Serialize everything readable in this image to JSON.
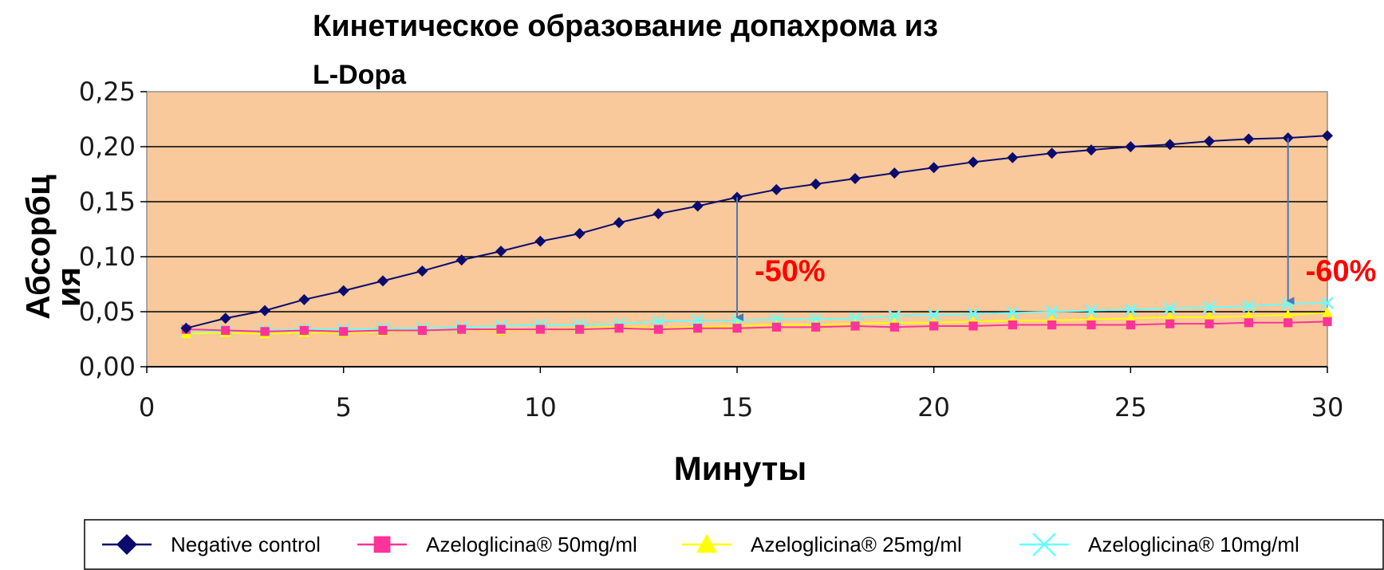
{
  "chart_data": {
    "type": "line",
    "title_line1": "Кинетическое образование допахрома из",
    "title_line2": "L-Dopa",
    "xlabel": "Минуты",
    "ylabel_line1": "Абсорбц",
    "ylabel_line2": "ия",
    "xlim": [
      0,
      30
    ],
    "ylim": [
      0,
      0.25
    ],
    "x_ticks": [
      "0",
      "5",
      "10",
      "15",
      "20",
      "25",
      "30"
    ],
    "y_ticks": [
      "0,00",
      "0,05",
      "0,10",
      "0,15",
      "0,20",
      "0,25"
    ],
    "grid": "horizontal",
    "plot_background": "#f9c89b",
    "x": [
      1,
      2,
      3,
      4,
      5,
      6,
      7,
      8,
      9,
      10,
      11,
      12,
      13,
      14,
      15,
      16,
      17,
      18,
      19,
      20,
      21,
      22,
      23,
      24,
      25,
      26,
      27,
      28,
      29,
      30
    ],
    "series": [
      {
        "name": "Negative control",
        "color": "#0b0b6e",
        "marker": "diamond",
        "values": [
          0.035,
          0.044,
          0.051,
          0.061,
          0.069,
          0.078,
          0.087,
          0.097,
          0.105,
          0.114,
          0.121,
          0.131,
          0.139,
          0.146,
          0.154,
          0.161,
          0.166,
          0.171,
          0.176,
          0.181,
          0.186,
          0.19,
          0.194,
          0.197,
          0.2,
          0.202,
          0.205,
          0.207,
          0.208,
          0.21
        ]
      },
      {
        "name": "Azeloglicina® 50mg/ml",
        "color": "#ff3399",
        "marker": "square",
        "values": [
          0.034,
          0.033,
          0.032,
          0.033,
          0.032,
          0.033,
          0.033,
          0.034,
          0.034,
          0.034,
          0.034,
          0.035,
          0.034,
          0.035,
          0.035,
          0.036,
          0.036,
          0.037,
          0.036,
          0.037,
          0.037,
          0.038,
          0.038,
          0.038,
          0.038,
          0.039,
          0.039,
          0.04,
          0.04,
          0.041
        ]
      },
      {
        "name": "Azeloglicina® 25mg/ml",
        "color": "#ffff00",
        "marker": "triangle",
        "values": [
          0.03,
          0.031,
          0.03,
          0.031,
          0.031,
          0.032,
          0.033,
          0.034,
          0.033,
          0.034,
          0.035,
          0.036,
          0.035,
          0.036,
          0.037,
          0.038,
          0.038,
          0.039,
          0.04,
          0.04,
          0.041,
          0.042,
          0.042,
          0.043,
          0.044,
          0.045,
          0.045,
          0.046,
          0.047,
          0.049
        ]
      },
      {
        "name": "Azeloglicina® 10mg/ml",
        "color": "#66ffff",
        "marker": "x",
        "values": [
          0.031,
          0.032,
          0.033,
          0.034,
          0.034,
          0.035,
          0.035,
          0.036,
          0.037,
          0.038,
          0.038,
          0.039,
          0.041,
          0.042,
          0.042,
          0.043,
          0.043,
          0.044,
          0.046,
          0.047,
          0.048,
          0.049,
          0.05,
          0.051,
          0.052,
          0.053,
          0.054,
          0.055,
          0.057,
          0.058
        ]
      }
    ],
    "annotations": [
      {
        "text": "-50%",
        "x": 15,
        "y_from": 0.154,
        "y_to": 0.042,
        "color": "#ff0000",
        "arrow_color": "#4a78b5"
      },
      {
        "text": "-60%",
        "x": 29,
        "y_from": 0.208,
        "y_to": 0.057,
        "color": "#ff0000",
        "arrow_color": "#4a78b5"
      }
    ]
  }
}
